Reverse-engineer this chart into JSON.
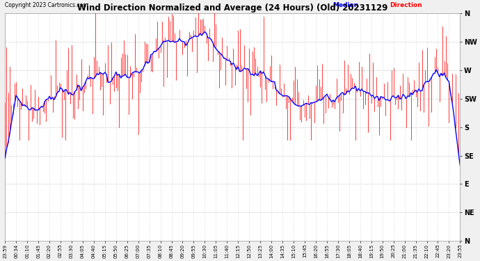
{
  "title": "Wind Direction Normalized and Average (24 Hours) (Old) 20231129",
  "copyright": "Copyright 2023 Cartronics.com",
  "legend_median": "Median",
  "legend_direction": "Direction",
  "y_labels": [
    "N",
    "NW",
    "W",
    "SW",
    "S",
    "SE",
    "E",
    "NE",
    "N"
  ],
  "y_values": [
    360,
    315,
    270,
    225,
    180,
    135,
    90,
    45,
    0
  ],
  "x_labels": [
    "23:59",
    "00:34",
    "01:10",
    "01:45",
    "02:20",
    "02:55",
    "03:30",
    "04:05",
    "04:40",
    "05:15",
    "05:50",
    "06:25",
    "07:00",
    "07:35",
    "08:10",
    "08:45",
    "09:20",
    "09:55",
    "10:30",
    "11:05",
    "11:40",
    "12:15",
    "12:50",
    "13:25",
    "14:00",
    "14:35",
    "15:10",
    "15:45",
    "16:20",
    "16:55",
    "17:30",
    "18:05",
    "18:40",
    "19:15",
    "19:50",
    "20:25",
    "21:00",
    "21:35",
    "22:10",
    "22:45",
    "23:20",
    "23:55"
  ],
  "ylim": [
    0,
    360
  ],
  "background_color": "#f0f0f0",
  "plot_bg_color": "#ffffff",
  "grid_color": "#aaaaaa",
  "red_color": "#ff0000",
  "blue_color": "#0000ff",
  "black_color": "#000000",
  "title_color": "#000000",
  "copyright_color": "#000000",
  "median_legend_color": "#0000ff",
  "direction_legend_color": "#ff0000",
  "n_points": 288,
  "noise_std": 40,
  "median_window": 15
}
